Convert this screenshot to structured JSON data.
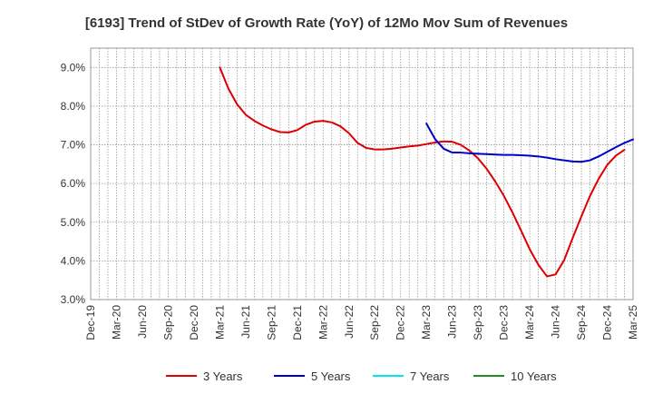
{
  "chart_data": {
    "type": "line",
    "title": "[6193]  Trend of StDev of Growth Rate (YoY) of 12Mo Mov Sum of Revenues",
    "xlabel": "",
    "ylabel": "",
    "ylim": [
      3.0,
      9.5
    ],
    "y_ticks": [
      3.0,
      4.0,
      5.0,
      6.0,
      7.0,
      8.0,
      9.0
    ],
    "y_tick_labels": [
      "3.0%",
      "4.0%",
      "5.0%",
      "6.0%",
      "7.0%",
      "8.0%",
      "9.0%"
    ],
    "x_tick_labels": [
      "Dec-19",
      "Mar-20",
      "Jun-20",
      "Sep-20",
      "Dec-20",
      "Mar-21",
      "Jun-21",
      "Sep-21",
      "Dec-21",
      "Mar-22",
      "Jun-22",
      "Sep-22",
      "Dec-22",
      "Mar-23",
      "Jun-23",
      "Sep-23",
      "Dec-23",
      "Mar-24",
      "Jun-24",
      "Sep-24",
      "Dec-24",
      "Mar-25"
    ],
    "x_start": "Dec-19",
    "grid": true,
    "legend_position": "bottom",
    "series": [
      {
        "name": "3 Years",
        "color": "#dd0000",
        "start_index": 15,
        "values": [
          9.0,
          8.45,
          8.05,
          7.78,
          7.62,
          7.5,
          7.4,
          7.33,
          7.32,
          7.38,
          7.52,
          7.6,
          7.62,
          7.58,
          7.48,
          7.3,
          7.05,
          6.92,
          6.88,
          6.88,
          6.9,
          6.93,
          6.96,
          6.98,
          7.02,
          7.06,
          7.09,
          7.08,
          7.0,
          6.85,
          6.65,
          6.38,
          6.05,
          5.68,
          5.25,
          4.78,
          4.3,
          3.9,
          3.6,
          3.65,
          4.02,
          4.6,
          5.15,
          5.68,
          6.12,
          6.48,
          6.72,
          6.87
        ]
      },
      {
        "name": "5 Years",
        "color": "#0000cc",
        "start_index": 39,
        "values": [
          7.55,
          7.15,
          6.9,
          6.8,
          6.8,
          6.78,
          6.77,
          6.76,
          6.75,
          6.74,
          6.74,
          6.73,
          6.72,
          6.7,
          6.67,
          6.63,
          6.6,
          6.57,
          6.56,
          6.6,
          6.7,
          6.82,
          6.94,
          7.05,
          7.14
        ]
      },
      {
        "name": "7 Years",
        "color": "#00e5ee",
        "start_index": 0,
        "values": []
      },
      {
        "name": "10 Years",
        "color": "#228b22",
        "start_index": 0,
        "values": []
      }
    ]
  }
}
